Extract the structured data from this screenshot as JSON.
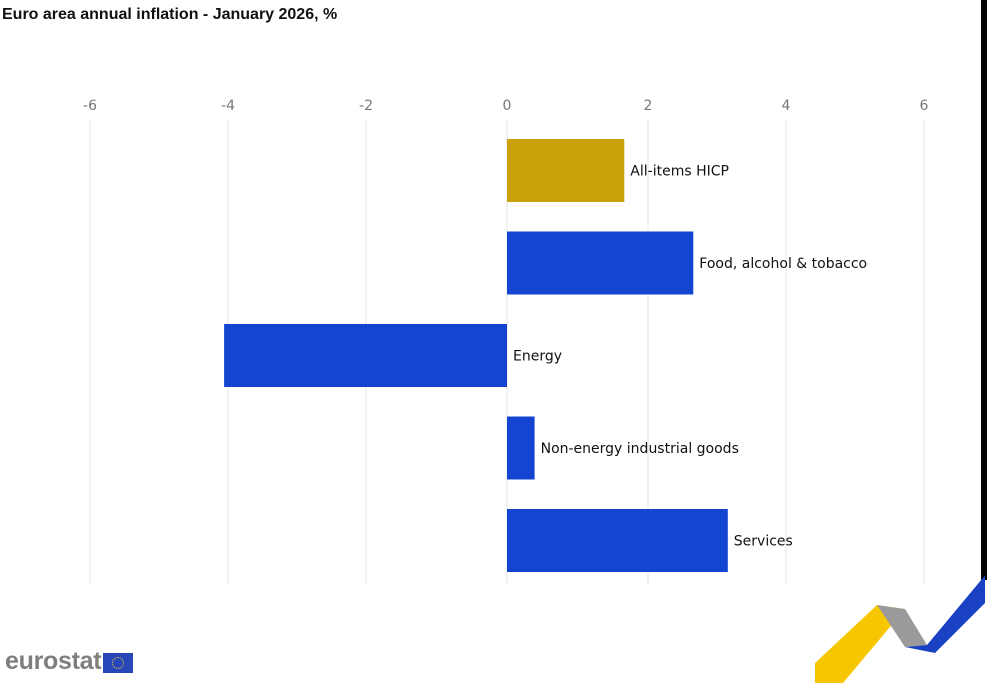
{
  "title": "Euro area annual inflation - January 2026, %",
  "logo": {
    "text": "eurostat",
    "flag_icon": "eu-flag-icon"
  },
  "colors": {
    "highlight": "#c9a20a",
    "bar": "#1445d1",
    "grid": "#e6e6e6",
    "tick": "#777777",
    "ribbon_yellow": "#f6c700",
    "ribbon_blue": "#1a41c2",
    "ribbon_grey": "#9a9a9a"
  },
  "chart_data": {
    "type": "bar",
    "orientation": "horizontal",
    "title": "Euro area annual inflation - January 2026, %",
    "categories": [
      "All-items HICP",
      "Food, alcohol & tobacco",
      "Energy",
      "Non-energy industrial goods",
      "Services"
    ],
    "values": [
      1.7,
      2.7,
      -4.1,
      0.4,
      3.2
    ],
    "highlight": [
      true,
      false,
      false,
      false,
      false
    ],
    "xlim": [
      -6,
      6
    ],
    "xticks": [
      -6,
      -4,
      -2,
      0,
      2,
      4,
      6
    ],
    "tick_labels": [
      "-6",
      "-4",
      "-2",
      "0",
      "2",
      "4",
      "6"
    ],
    "axis_position": "top",
    "grid": true,
    "legend": false
  }
}
